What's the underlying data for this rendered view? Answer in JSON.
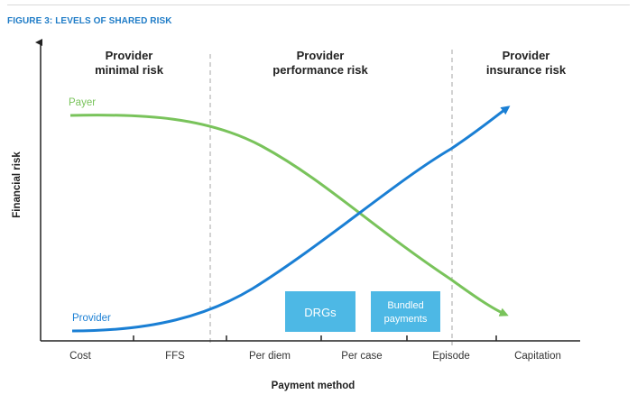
{
  "figure_title": "FIGURE 3: LEVELS OF SHARED RISK",
  "zones": [
    {
      "line1": "Provider",
      "line2": "minimal risk"
    },
    {
      "line1": "Provider",
      "line2": "performance risk"
    },
    {
      "line1": "Provider",
      "line2": "insurance risk"
    }
  ],
  "y_axis_label": "Financial risk",
  "x_axis_label": "Payment method",
  "categories": [
    "Cost",
    "FFS",
    "Per diem",
    "Per case",
    "Episode",
    "Capitation"
  ],
  "curves": {
    "payer": {
      "label": "Payer",
      "color": "#79c35b"
    },
    "provider": {
      "label": "Provider",
      "color": "#1a7fd4"
    }
  },
  "boxes": [
    {
      "lines": [
        "DRGs"
      ],
      "color": "#4db8e5"
    },
    {
      "lines": [
        "Bundled",
        "payments"
      ],
      "color": "#4db8e5"
    }
  ]
}
